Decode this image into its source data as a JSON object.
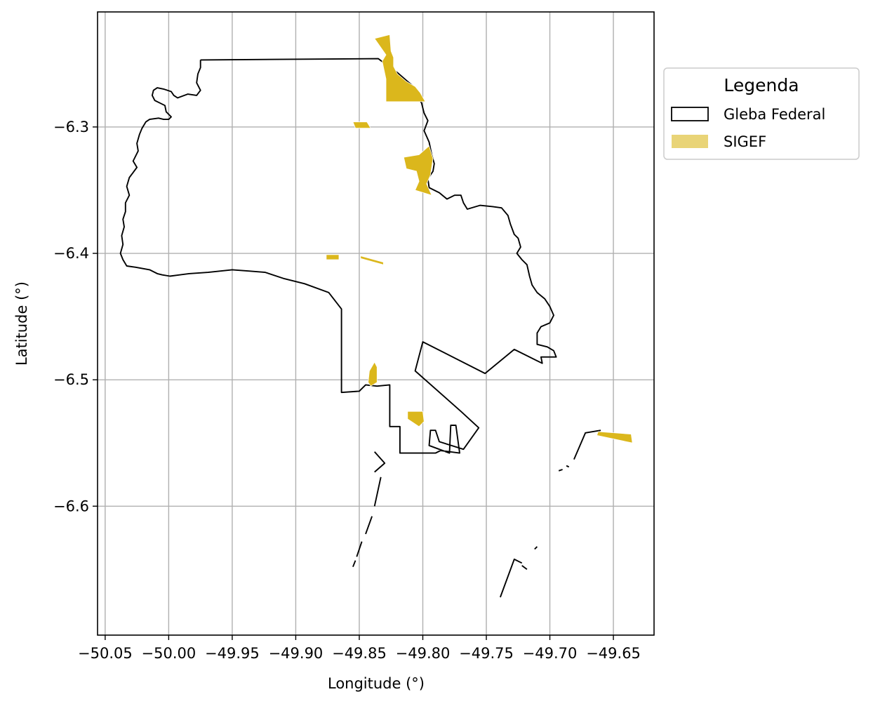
{
  "chart_data": {
    "type": "map",
    "xlabel": "Longitude (°)",
    "ylabel": "Latitude (°)",
    "xlim": [
      -50.056,
      -49.618
    ],
    "ylim": [
      -6.702,
      -6.209
    ],
    "grid": true,
    "x_ticks": [
      -50.05,
      -50.0,
      -49.95,
      -49.9,
      -49.85,
      -49.8,
      -49.75,
      -49.7,
      -49.65
    ],
    "x_tick_labels": [
      "−50.05",
      "−50.00",
      "−49.95",
      "−49.90",
      "−49.85",
      "−49.80",
      "−49.75",
      "−49.70",
      "−49.65"
    ],
    "y_ticks": [
      -6.3,
      -6.4,
      -6.5,
      -6.6
    ],
    "y_tick_labels": [
      "−6.3",
      "−6.4",
      "−6.5",
      "−6.6"
    ],
    "legend": {
      "title": "Legenda",
      "placement": "outside-right-top",
      "entries": [
        {
          "label": "Gleba Federal",
          "style": "outline",
          "color": "#000000"
        },
        {
          "label": "SIGEF",
          "style": "fill",
          "color": "#dbb71c"
        }
      ]
    },
    "layers": [
      {
        "name": "Gleba Federal",
        "style": "outline",
        "color": "#000000",
        "paths": [
          [
            [
              -49.975,
              -6.247
            ],
            [
              -49.835,
              -6.246
            ],
            [
              -49.827,
              -6.252
            ],
            [
              -49.82,
              -6.257
            ],
            [
              -49.812,
              -6.264
            ],
            [
              -49.806,
              -6.269
            ],
            [
              -49.804,
              -6.276
            ],
            [
              -49.801,
              -6.281
            ],
            [
              -49.799,
              -6.289
            ],
            [
              -49.796,
              -6.295
            ],
            [
              -49.799,
              -6.303
            ],
            [
              -49.795,
              -6.312
            ],
            [
              -49.793,
              -6.322
            ],
            [
              -49.791,
              -6.329
            ],
            [
              -49.792,
              -6.335
            ],
            [
              -49.796,
              -6.341
            ],
            [
              -49.795,
              -6.348
            ],
            [
              -49.787,
              -6.352
            ],
            [
              -49.781,
              -6.357
            ],
            [
              -49.775,
              -6.354
            ],
            [
              -49.77,
              -6.354
            ],
            [
              -49.768,
              -6.36
            ],
            [
              -49.765,
              -6.365
            ],
            [
              -49.755,
              -6.362
            ],
            [
              -49.745,
              -6.363
            ],
            [
              -49.738,
              -6.364
            ],
            [
              -49.733,
              -6.37
            ],
            [
              -49.731,
              -6.377
            ],
            [
              -49.728,
              -6.385
            ],
            [
              -49.725,
              -6.388
            ],
            [
              -49.723,
              -6.395
            ],
            [
              -49.726,
              -6.4
            ],
            [
              -49.722,
              -6.405
            ],
            [
              -49.718,
              -6.409
            ],
            [
              -49.716,
              -6.418
            ],
            [
              -49.714,
              -6.425
            ],
            [
              -49.71,
              -6.431
            ],
            [
              -49.704,
              -6.436
            ],
            [
              -49.7,
              -6.442
            ],
            [
              -49.697,
              -6.449
            ],
            [
              -49.7,
              -6.455
            ],
            [
              -49.707,
              -6.458
            ],
            [
              -49.71,
              -6.463
            ],
            [
              -49.71,
              -6.472
            ],
            [
              -49.702,
              -6.474
            ],
            [
              -49.697,
              -6.477
            ],
            [
              -49.695,
              -6.482
            ],
            [
              -49.707,
              -6.482
            ],
            [
              -49.706,
              -6.487
            ],
            [
              -49.728,
              -6.476
            ],
            [
              -49.751,
              -6.495
            ],
            [
              -49.8,
              -6.47
            ],
            [
              -49.806,
              -6.493
            ],
            [
              -49.77,
              -6.525
            ],
            [
              -49.756,
              -6.538
            ],
            [
              -49.768,
              -6.555
            ],
            [
              -49.787,
              -6.549
            ],
            [
              -49.79,
              -6.54
            ],
            [
              -49.794,
              -6.54
            ],
            [
              -49.795,
              -6.552
            ],
            [
              -49.779,
              -6.558
            ],
            [
              -49.778,
              -6.536
            ],
            [
              -49.774,
              -6.536
            ],
            [
              -49.771,
              -6.558
            ],
            [
              -49.786,
              -6.556
            ],
            [
              -49.79,
              -6.558
            ],
            [
              -49.797,
              -6.558
            ],
            [
              -49.818,
              -6.558
            ],
            [
              -49.818,
              -6.537
            ],
            [
              -49.826,
              -6.537
            ],
            [
              -49.826,
              -6.504
            ],
            [
              -49.836,
              -6.505
            ],
            [
              -49.845,
              -6.504
            ],
            [
              -49.849,
              -6.508
            ],
            [
              -49.85,
              -6.509
            ],
            [
              -49.864,
              -6.51
            ],
            [
              -49.864,
              -6.444
            ],
            [
              -49.874,
              -6.431
            ],
            [
              -49.893,
              -6.424
            ],
            [
              -49.909,
              -6.42
            ],
            [
              -49.924,
              -6.415
            ],
            [
              -49.937,
              -6.414
            ],
            [
              -49.95,
              -6.413
            ],
            [
              -49.969,
              -6.415
            ],
            [
              -49.984,
              -6.416
            ],
            [
              -49.999,
              -6.418
            ],
            [
              -50.005,
              -6.417
            ],
            [
              -50.009,
              -6.416
            ],
            [
              -50.015,
              -6.413
            ],
            [
              -50.026,
              -6.411
            ],
            [
              -50.033,
              -6.41
            ],
            [
              -50.036,
              -6.405
            ],
            [
              -50.038,
              -6.4
            ],
            [
              -50.036,
              -6.393
            ],
            [
              -50.037,
              -6.386
            ],
            [
              -50.035,
              -6.379
            ],
            [
              -50.036,
              -6.373
            ],
            [
              -50.034,
              -6.367
            ],
            [
              -50.034,
              -6.36
            ],
            [
              -50.031,
              -6.354
            ],
            [
              -50.033,
              -6.347
            ],
            [
              -50.031,
              -6.34
            ],
            [
              -50.028,
              -6.336
            ],
            [
              -50.025,
              -6.332
            ],
            [
              -50.028,
              -6.327
            ],
            [
              -50.024,
              -6.319
            ],
            [
              -50.025,
              -6.313
            ],
            [
              -50.023,
              -6.306
            ],
            [
              -50.021,
              -6.301
            ],
            [
              -50.018,
              -6.296
            ],
            [
              -50.015,
              -6.294
            ],
            [
              -50.008,
              -6.293
            ],
            [
              -50.004,
              -6.294
            ],
            [
              -50.0,
              -6.294
            ],
            [
              -49.998,
              -6.292
            ],
            [
              -50.002,
              -6.288
            ],
            [
              -50.003,
              -6.283
            ],
            [
              -50.007,
              -6.281
            ],
            [
              -50.011,
              -6.279
            ],
            [
              -50.013,
              -6.275
            ],
            [
              -50.012,
              -6.271
            ],
            [
              -50.009,
              -6.269
            ],
            [
              -50.004,
              -6.27
            ],
            [
              -49.998,
              -6.272
            ],
            [
              -49.996,
              -6.275
            ],
            [
              -49.993,
              -6.277
            ],
            [
              -49.985,
              -6.274
            ],
            [
              -49.978,
              -6.275
            ],
            [
              -49.975,
              -6.271
            ],
            [
              -49.978,
              -6.265
            ],
            [
              -49.977,
              -6.258
            ],
            [
              -49.975,
              -6.253
            ],
            [
              -49.975,
              -6.247
            ]
          ],
          [
            [
              -49.838,
              -6.557
            ],
            [
              -49.83,
              -6.566
            ],
            [
              -49.838,
              -6.573
            ]
          ],
          [
            [
              -49.833,
              -6.577
            ],
            [
              -49.838,
              -6.6
            ]
          ],
          [
            [
              -49.84,
              -6.608
            ],
            [
              -49.845,
              -6.622
            ]
          ],
          [
            [
              -49.848,
              -6.628
            ],
            [
              -49.852,
              -6.64
            ]
          ],
          [
            [
              -49.853,
              -6.643
            ],
            [
              -49.855,
              -6.648
            ]
          ],
          [
            [
              -49.739,
              -6.672
            ],
            [
              -49.728,
              -6.642
            ],
            [
              -49.722,
              -6.645
            ]
          ],
          [
            [
              -49.722,
              -6.647
            ],
            [
              -49.718,
              -6.65
            ]
          ],
          [
            [
              -49.71,
              -6.632
            ],
            [
              -49.712,
              -6.634
            ]
          ],
          [
            [
              -49.693,
              -6.572
            ],
            [
              -49.69,
              -6.571
            ]
          ],
          [
            [
              -49.687,
              -6.568
            ],
            [
              -49.685,
              -6.569
            ]
          ],
          [
            [
              -49.681,
              -6.563
            ],
            [
              -49.672,
              -6.542
            ],
            [
              -49.66,
              -6.54
            ]
          ]
        ]
      },
      {
        "name": "SIGEF",
        "style": "fill",
        "color": "#dbb71c",
        "polygons": [
          [
            [
              -49.838,
              -6.23
            ],
            [
              -49.826,
              -6.227
            ],
            [
              -49.825,
              -6.24
            ],
            [
              -49.823,
              -6.245
            ],
            [
              -49.823,
              -6.252
            ],
            [
              -49.82,
              -6.258
            ],
            [
              -49.813,
              -6.264
            ],
            [
              -49.806,
              -6.268
            ],
            [
              -49.802,
              -6.273
            ],
            [
              -49.798,
              -6.28
            ],
            [
              -49.829,
              -6.28
            ],
            [
              -49.829,
              -6.262
            ],
            [
              -49.832,
              -6.248
            ],
            [
              -49.829,
              -6.243
            ]
          ],
          [
            [
              -49.855,
              -6.296
            ],
            [
              -49.844,
              -6.296
            ],
            [
              -49.841,
              -6.301
            ],
            [
              -49.853,
              -6.301
            ]
          ],
          [
            [
              -49.815,
              -6.324
            ],
            [
              -49.803,
              -6.322
            ],
            [
              -49.795,
              -6.315
            ],
            [
              -49.792,
              -6.325
            ],
            [
              -49.794,
              -6.338
            ],
            [
              -49.797,
              -6.345
            ],
            [
              -49.793,
              -6.354
            ],
            [
              -49.806,
              -6.35
            ],
            [
              -49.803,
              -6.343
            ],
            [
              -49.805,
              -6.335
            ],
            [
              -49.813,
              -6.333
            ]
          ],
          [
            [
              -49.876,
              -6.401
            ],
            [
              -49.866,
              -6.401
            ],
            [
              -49.866,
              -6.405
            ],
            [
              -49.876,
              -6.405
            ]
          ],
          [
            [
              -49.849,
              -6.402
            ],
            [
              -49.831,
              -6.407
            ],
            [
              -49.831,
              -6.409
            ],
            [
              -49.849,
              -6.404
            ]
          ],
          [
            [
              -49.838,
              -6.486
            ],
            [
              -49.842,
              -6.493
            ],
            [
              -49.843,
              -6.502
            ],
            [
              -49.841,
              -6.505
            ],
            [
              -49.836,
              -6.502
            ],
            [
              -49.836,
              -6.49
            ]
          ],
          [
            [
              -49.812,
              -6.525
            ],
            [
              -49.8,
              -6.525
            ],
            [
              -49.799,
              -6.533
            ],
            [
              -49.803,
              -6.537
            ],
            [
              -49.812,
              -6.531
            ]
          ],
          [
            [
              -49.662,
              -6.541
            ],
            [
              -49.636,
              -6.543
            ],
            [
              -49.635,
              -6.55
            ],
            [
              -49.663,
              -6.544
            ]
          ]
        ]
      }
    ]
  }
}
